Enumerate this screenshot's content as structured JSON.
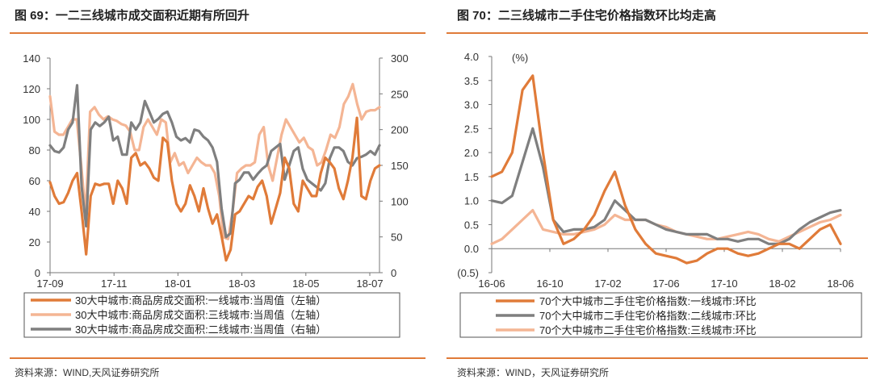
{
  "left_figure": {
    "title": "图 69：一二三线城市成交面积近期有所回升",
    "source": "资料来源：WIND,天风证券研究所"
  },
  "right_figure": {
    "title": "图 70：二三线城市二手住宅价格指数环比均走高",
    "source": "资料来源：WIND，天风证券研究所"
  },
  "colors": {
    "accent_rule": "#e07b39"
  },
  "chart_data": [
    {
      "type": "line",
      "title": "一二三线城市成交面积近期有所回升",
      "x_tick_labels": [
        "17-09",
        "17-11",
        "18-01",
        "18-03",
        "18-05",
        "18-07"
      ],
      "y_left": {
        "ylim": [
          0,
          140
        ],
        "ticks": [
          0,
          20,
          40,
          60,
          80,
          100,
          120,
          140
        ]
      },
      "y_right": {
        "ylim": [
          0,
          300
        ],
        "ticks": [
          0,
          50,
          100,
          150,
          200,
          250,
          300
        ]
      },
      "series": [
        {
          "name": "30大中城市:商品房成交面积:一线城市:当周值（左轴）",
          "axis": "left",
          "color": "#e07b39",
          "width": 3.2,
          "values": [
            59,
            50,
            45,
            46,
            52,
            60,
            65,
            40,
            12,
            50,
            58,
            57,
            58,
            58,
            45,
            60,
            55,
            45,
            75,
            78,
            70,
            72,
            68,
            62,
            60,
            88,
            85,
            60,
            45,
            40,
            45,
            57,
            50,
            40,
            55,
            42,
            32,
            38,
            24,
            8,
            15,
            38,
            40,
            45,
            50,
            48,
            56,
            60,
            50,
            32,
            42,
            52,
            75,
            68,
            45,
            40,
            60,
            55,
            50,
            50,
            65,
            75,
            72,
            68,
            55,
            48,
            60,
            75,
            101,
            50,
            48,
            60,
            68,
            70
          ]
        },
        {
          "name": "30大中城市:商品房成交面积:三线城市:当周值（左轴）",
          "axis": "left",
          "color": "#f4b594",
          "width": 3.2,
          "values": [
            115,
            92,
            90,
            90,
            95,
            100,
            100,
            70,
            38,
            105,
            108,
            103,
            100,
            102,
            100,
            99,
            97,
            96,
            92,
            80,
            80,
            95,
            100,
            95,
            90,
            100,
            98,
            72,
            78,
            70,
            72,
            65,
            70,
            75,
            72,
            70,
            70,
            65,
            50,
            23,
            22,
            40,
            65,
            68,
            70,
            70,
            72,
            90,
            95,
            70,
            60,
            75,
            90,
            100,
            95,
            90,
            85,
            88,
            82,
            80,
            70,
            72,
            80,
            90,
            88,
            95,
            110,
            115,
            123,
            110,
            100,
            105,
            106,
            106,
            108
          ]
        },
        {
          "name": "30大中城市:商品房成交面积:二线城市:当周值（右轴）",
          "axis": "right",
          "color": "#7f7f7f",
          "width": 3.2,
          "values": [
            178,
            170,
            168,
            175,
            200,
            210,
            262,
            120,
            65,
            200,
            210,
            205,
            210,
            218,
            185,
            190,
            165,
            165,
            210,
            200,
            210,
            240,
            225,
            210,
            215,
            222,
            225,
            210,
            190,
            185,
            188,
            182,
            200,
            198,
            190,
            185,
            175,
            155,
            90,
            50,
            55,
            125,
            130,
            140,
            140,
            130,
            138,
            145,
            150,
            170,
            175,
            180,
            130,
            150,
            170,
            175,
            145,
            130,
            125,
            120,
            115,
            125,
            160,
            175,
            175,
            170,
            155,
            150,
            160,
            162,
            165,
            170,
            165,
            178
          ]
        }
      ]
    },
    {
      "type": "line",
      "title": "二三线城市二手住宅价格指数环比均走高",
      "y_unit_label": "(%)",
      "x_tick_labels": [
        "16-06",
        "16-10",
        "17-02",
        "17-06",
        "17-10",
        "18-02",
        "18-06"
      ],
      "y_tick_labels": [
        "4.0",
        "3.5",
        "3.0",
        "2.5",
        "2.0",
        "1.5",
        "1.0",
        "0.5",
        "0.0",
        "(0.5)"
      ],
      "ylim": [
        -0.5,
        4.0
      ],
      "series": [
        {
          "name": "70个大中城市二手住宅价格指数:一线城市:环比",
          "color": "#e07b39",
          "width": 3.2,
          "values": [
            1.5,
            1.6,
            2.0,
            3.3,
            3.6,
            2.0,
            0.6,
            0.1,
            0.2,
            0.4,
            0.7,
            1.2,
            1.6,
            0.9,
            0.4,
            0.1,
            -0.1,
            -0.15,
            -0.2,
            -0.3,
            -0.25,
            -0.1,
            0.0,
            0.0,
            -0.1,
            -0.15,
            -0.1,
            0.0,
            0.1,
            0.1,
            0.0,
            0.2,
            0.4,
            0.5,
            0.1
          ]
        },
        {
          "name": "70个大中城市二手住宅价格指数:二线城市:环比",
          "color": "#7f7f7f",
          "width": 3.2,
          "values": [
            1.0,
            0.95,
            1.1,
            1.8,
            2.5,
            1.7,
            0.6,
            0.35,
            0.4,
            0.4,
            0.45,
            0.6,
            1.0,
            0.8,
            0.6,
            0.6,
            0.5,
            0.4,
            0.35,
            0.3,
            0.3,
            0.3,
            0.2,
            0.2,
            0.15,
            0.2,
            0.2,
            0.1,
            0.1,
            0.2,
            0.4,
            0.55,
            0.65,
            0.75,
            0.8
          ]
        },
        {
          "name": "70个大中城市二手住宅价格指数:三线城市:环比",
          "color": "#f4b594",
          "width": 3.2,
          "values": [
            0.1,
            0.2,
            0.4,
            0.6,
            0.8,
            0.4,
            0.35,
            0.3,
            0.3,
            0.35,
            0.4,
            0.5,
            0.7,
            0.6,
            0.6,
            0.6,
            0.5,
            0.45,
            0.35,
            0.3,
            0.25,
            0.2,
            0.2,
            0.25,
            0.3,
            0.35,
            0.3,
            0.2,
            0.15,
            0.25,
            0.35,
            0.45,
            0.55,
            0.6,
            0.7
          ]
        }
      ]
    }
  ]
}
